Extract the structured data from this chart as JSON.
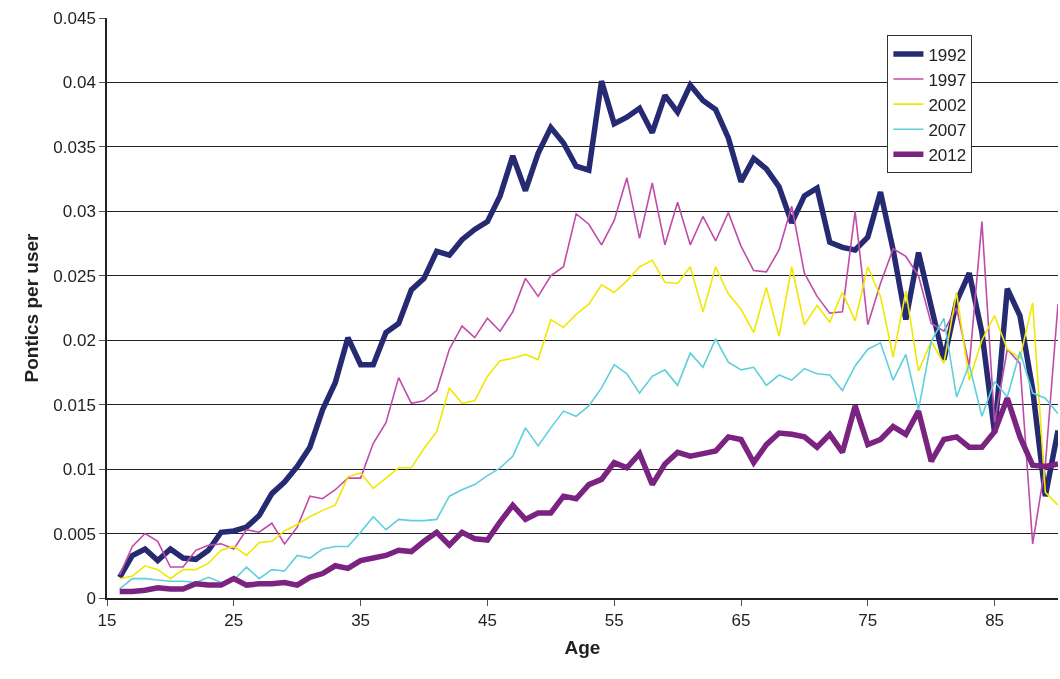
{
  "chart_data": {
    "type": "line",
    "xlabel": "Age",
    "ylabel": "Pontics per user",
    "x": [
      16,
      17,
      18,
      19,
      20,
      21,
      22,
      23,
      24,
      25,
      26,
      27,
      28,
      29,
      30,
      31,
      32,
      33,
      34,
      35,
      36,
      37,
      38,
      39,
      40,
      41,
      42,
      43,
      44,
      45,
      46,
      47,
      48,
      49,
      50,
      51,
      52,
      53,
      54,
      55,
      56,
      57,
      58,
      59,
      60,
      61,
      62,
      63,
      64,
      65,
      66,
      67,
      68,
      69,
      70,
      71,
      72,
      73,
      74,
      75,
      76,
      77,
      78,
      79,
      80,
      81,
      82,
      83,
      84,
      85,
      86,
      87,
      88,
      89,
      90
    ],
    "xlim": [
      15,
      90
    ],
    "xticks": [
      15,
      25,
      35,
      45,
      55,
      65,
      75,
      85
    ],
    "ylim": [
      0,
      0.045
    ],
    "yticks": [
      0,
      0.005,
      0.01,
      0.015,
      0.02,
      0.025,
      0.03,
      0.035,
      0.04,
      0.045
    ],
    "grid": "y",
    "legend": "top right",
    "marker": "none",
    "series": [
      {
        "name": "1992",
        "color": "#252a72",
        "values": [
          0.0016,
          0.0033,
          0.0038,
          0.0029,
          0.0038,
          0.0031,
          0.003,
          0.0037,
          0.0051,
          0.0052,
          0.0055,
          0.0064,
          0.0081,
          0.009,
          0.0102,
          0.0117,
          0.0146,
          0.0167,
          0.0202,
          0.0181,
          0.0181,
          0.0206,
          0.0213,
          0.0239,
          0.0248,
          0.0269,
          0.0266,
          0.0278,
          0.0286,
          0.0292,
          0.0312,
          0.0343,
          0.0316,
          0.0345,
          0.0365,
          0.0353,
          0.0335,
          0.0332,
          0.0401,
          0.0368,
          0.0373,
          0.038,
          0.0361,
          0.039,
          0.0377,
          0.0398,
          0.0386,
          0.0379,
          0.0357,
          0.0323,
          0.0341,
          0.0333,
          0.0319,
          0.0291,
          0.0312,
          0.0318,
          0.0276,
          0.0272,
          0.027,
          0.028,
          0.0315,
          0.027,
          0.0216,
          0.0268,
          0.0226,
          0.0185,
          0.023,
          0.0252,
          0.0206,
          0.0128,
          0.024,
          0.0219,
          0.0162,
          0.0079,
          0.013
        ]
      },
      {
        "name": "1997",
        "color": "#c04ca8",
        "values": [
          0.0018,
          0.004,
          0.005,
          0.0044,
          0.0024,
          0.0024,
          0.0037,
          0.0041,
          0.0042,
          0.0038,
          0.0053,
          0.0051,
          0.0058,
          0.0042,
          0.0055,
          0.0079,
          0.0077,
          0.0084,
          0.0093,
          0.0093,
          0.012,
          0.0136,
          0.0171,
          0.0151,
          0.0153,
          0.0161,
          0.0193,
          0.0211,
          0.0202,
          0.0217,
          0.0207,
          0.0222,
          0.0248,
          0.0234,
          0.025,
          0.0257,
          0.0298,
          0.029,
          0.0274,
          0.0293,
          0.0326,
          0.0279,
          0.0322,
          0.0274,
          0.0307,
          0.0274,
          0.0296,
          0.0277,
          0.0299,
          0.0273,
          0.0254,
          0.0253,
          0.027,
          0.0304,
          0.0252,
          0.0234,
          0.0221,
          0.0222,
          0.03,
          0.0212,
          0.0244,
          0.0271,
          0.0265,
          0.025,
          0.0213,
          0.0207,
          0.0225,
          0.018,
          0.0292,
          0.0136,
          0.0193,
          0.0182,
          0.0042,
          0.0103,
          0.0228
        ]
      },
      {
        "name": "2002",
        "color": "#f0e800",
        "values": [
          0.0015,
          0.0017,
          0.0025,
          0.0022,
          0.0015,
          0.0022,
          0.0022,
          0.0027,
          0.0037,
          0.004,
          0.0033,
          0.0043,
          0.0044,
          0.0052,
          0.0057,
          0.0063,
          0.0068,
          0.0072,
          0.0094,
          0.0097,
          0.0085,
          0.0093,
          0.0101,
          0.0101,
          0.0116,
          0.0129,
          0.0163,
          0.0151,
          0.0153,
          0.0172,
          0.0184,
          0.0186,
          0.0189,
          0.0185,
          0.0216,
          0.021,
          0.022,
          0.0228,
          0.0243,
          0.0237,
          0.0246,
          0.0257,
          0.0262,
          0.0245,
          0.0244,
          0.0257,
          0.0222,
          0.0257,
          0.0236,
          0.0224,
          0.0206,
          0.0241,
          0.0203,
          0.0257,
          0.0212,
          0.0227,
          0.0214,
          0.0237,
          0.0215,
          0.0257,
          0.0234,
          0.0187,
          0.0238,
          0.0176,
          0.0199,
          0.0182,
          0.0237,
          0.0169,
          0.02,
          0.0219,
          0.0193,
          0.0186,
          0.0229,
          0.0082,
          0.0072
        ]
      },
      {
        "name": "2007",
        "color": "#5ecfdc",
        "values": [
          0.0007,
          0.0015,
          0.0015,
          0.0014,
          0.0013,
          0.0013,
          0.0012,
          0.0016,
          0.0012,
          0.0014,
          0.0024,
          0.0015,
          0.0022,
          0.0021,
          0.0033,
          0.0031,
          0.0038,
          0.004,
          0.004,
          0.0051,
          0.0063,
          0.0053,
          0.0061,
          0.006,
          0.006,
          0.0061,
          0.0079,
          0.0084,
          0.0088,
          0.0095,
          0.0101,
          0.011,
          0.0132,
          0.0118,
          0.0132,
          0.0145,
          0.0141,
          0.0149,
          0.0163,
          0.0181,
          0.0174,
          0.0159,
          0.0172,
          0.0177,
          0.0165,
          0.019,
          0.0179,
          0.0201,
          0.0183,
          0.0177,
          0.0179,
          0.0165,
          0.0173,
          0.0169,
          0.0178,
          0.0174,
          0.0173,
          0.0161,
          0.018,
          0.0193,
          0.0198,
          0.0169,
          0.0189,
          0.0146,
          0.0199,
          0.0217,
          0.0156,
          0.0181,
          0.0141,
          0.0168,
          0.0156,
          0.0191,
          0.0159,
          0.0155,
          0.0143
        ]
      },
      {
        "name": "2012",
        "color": "#7b2380",
        "values": [
          0.0005,
          0.0005,
          0.0006,
          0.0008,
          0.0007,
          0.0007,
          0.0011,
          0.001,
          0.001,
          0.0015,
          0.001,
          0.0011,
          0.0011,
          0.0012,
          0.001,
          0.0016,
          0.0019,
          0.0025,
          0.0023,
          0.0029,
          0.0031,
          0.0033,
          0.0037,
          0.0036,
          0.0044,
          0.0051,
          0.0041,
          0.0051,
          0.0046,
          0.0045,
          0.0059,
          0.0072,
          0.0061,
          0.0066,
          0.0066,
          0.0079,
          0.0077,
          0.0088,
          0.0092,
          0.0105,
          0.0101,
          0.0112,
          0.0088,
          0.0104,
          0.0113,
          0.011,
          0.0112,
          0.0114,
          0.0125,
          0.0123,
          0.0105,
          0.0119,
          0.0128,
          0.0127,
          0.0125,
          0.0117,
          0.0127,
          0.0113,
          0.0149,
          0.0119,
          0.0123,
          0.0133,
          0.0127,
          0.0145,
          0.0106,
          0.0123,
          0.0125,
          0.0117,
          0.0117,
          0.0129,
          0.0155,
          0.0125,
          0.0103,
          0.0102,
          0.0104
        ]
      }
    ]
  }
}
